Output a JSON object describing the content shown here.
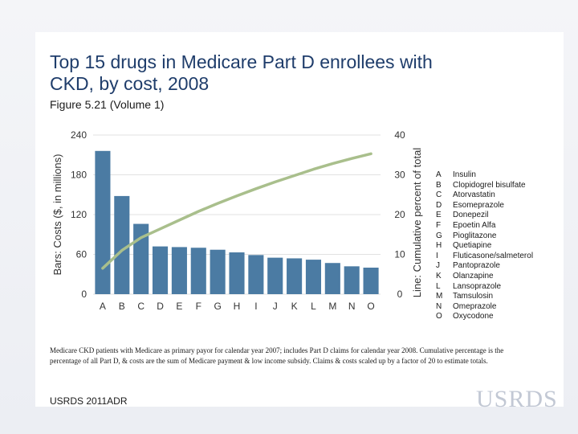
{
  "slide": {
    "title": "Top 15 drugs in Medicare Part D enrollees with CKD, by cost, 2008",
    "subtitle": "Figure 5.21 (Volume 1)",
    "note": "Medicare CKD patients with Medicare as primary payor for calendar year 2007; includes Part D claims for calendar year 2008. Cumulative percentage is the percentage of all Part D, & costs are the sum of Medicare payment & low income subsidy. Claims & costs scaled up by a factor of 20 to estimate totals.",
    "source": "USRDS 2011ADR",
    "logo": "USRDS"
  },
  "legend": [
    {
      "key": "A",
      "label": "Insulin"
    },
    {
      "key": "B",
      "label": "Clopidogrel bisulfate"
    },
    {
      "key": "C",
      "label": "Atorvastatin"
    },
    {
      "key": "D",
      "label": "Esomeprazole"
    },
    {
      "key": "E",
      "label": "Donepezil"
    },
    {
      "key": "F",
      "label": "Epoetin Alfa"
    },
    {
      "key": "G",
      "label": "Pioglitazone"
    },
    {
      "key": "H",
      "label": "Quetiapine"
    },
    {
      "key": "I",
      "label": "Fluticasone/salmeterol"
    },
    {
      "key": "J",
      "label": "Pantoprazole"
    },
    {
      "key": "K",
      "label": "Olanzapine"
    },
    {
      "key": "L",
      "label": "Lansoprazole"
    },
    {
      "key": "M",
      "label": "Tamsulosin"
    },
    {
      "key": "N",
      "label": "Omeprazole"
    },
    {
      "key": "O",
      "label": "Oxycodone"
    }
  ],
  "chart_data": {
    "type": "bar",
    "categories": [
      "A",
      "B",
      "C",
      "D",
      "E",
      "F",
      "G",
      "H",
      "I",
      "J",
      "K",
      "L",
      "M",
      "N",
      "O"
    ],
    "series": [
      {
        "name": "Bars: Costs ($, in millions)",
        "axis": "left",
        "values": [
          216,
          148,
          106,
          72,
          71,
          70,
          67,
          63,
          59,
          55,
          54,
          52,
          47,
          42,
          40
        ]
      },
      {
        "name": "Line: Cumulative percent of total",
        "axis": "right",
        "values": [
          6.5,
          11.0,
          14.2,
          16.4,
          18.6,
          20.8,
          22.8,
          24.7,
          26.5,
          28.2,
          29.8,
          31.4,
          32.8,
          34.1,
          35.3
        ]
      }
    ],
    "ylabel": "Bars: Costs ($, in millions)",
    "y2label": "Line: Cumulative percent of total",
    "ylim": [
      0,
      240
    ],
    "yticks": [
      0,
      60,
      120,
      180,
      240
    ],
    "y2lim": [
      0,
      40
    ],
    "y2ticks": [
      0,
      10,
      20,
      30,
      40
    ],
    "bar_color": "#4b7ba3",
    "line_color": "#a9bf8c"
  }
}
